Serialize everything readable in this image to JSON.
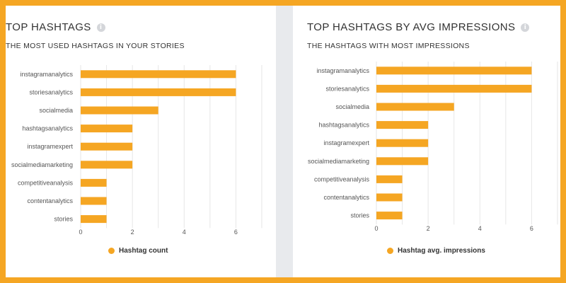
{
  "colors": {
    "bar": "#f5a623",
    "border": "#f5a623",
    "grid": "#e6e6e6",
    "axis_text": "#555555"
  },
  "panels": [
    {
      "title": "TOP HASHTAGS",
      "subtitle": "THE MOST USED HASHTAGS IN YOUR STORIES",
      "info_icon": "info-icon",
      "legend": "Hashtag count"
    },
    {
      "title": "TOP HASHTAGS BY AVG IMPRESSIONS",
      "subtitle": "THE HASHTAGS WITH MOST IMPRESSIONS",
      "info_icon": "info-icon",
      "legend": "Hashtag avg. impressions"
    }
  ],
  "chart_data": [
    {
      "type": "bar",
      "orientation": "horizontal",
      "categories": [
        "instagramanalytics",
        "storiesanalytics",
        "socialmedia",
        "hashtagsanalytics",
        "instagramexpert",
        "socialmediamarketing",
        "competitiveanalysis",
        "contentanalytics",
        "stories"
      ],
      "series": [
        {
          "name": "Hashtag count",
          "values": [
            6,
            6,
            3,
            2,
            2,
            2,
            1,
            1,
            1
          ]
        }
      ],
      "xticks": [
        0,
        2,
        4,
        6
      ],
      "xlim": [
        0,
        7
      ],
      "grid": true,
      "legend_position": "bottom"
    },
    {
      "type": "bar",
      "orientation": "horizontal",
      "categories": [
        "instagramanalytics",
        "storiesanalytics",
        "socialmedia",
        "hashtagsanalytics",
        "instagramexpert",
        "socialmediamarketing",
        "competitiveanalysis",
        "contentanalytics",
        "stories"
      ],
      "series": [
        {
          "name": "Hashtag avg. impressions",
          "values": [
            6,
            6,
            3,
            2,
            2,
            2,
            1,
            1,
            1
          ]
        }
      ],
      "xticks": [
        0,
        2,
        4,
        6
      ],
      "xlim": [
        0,
        7
      ],
      "grid": true,
      "legend_position": "bottom"
    }
  ]
}
